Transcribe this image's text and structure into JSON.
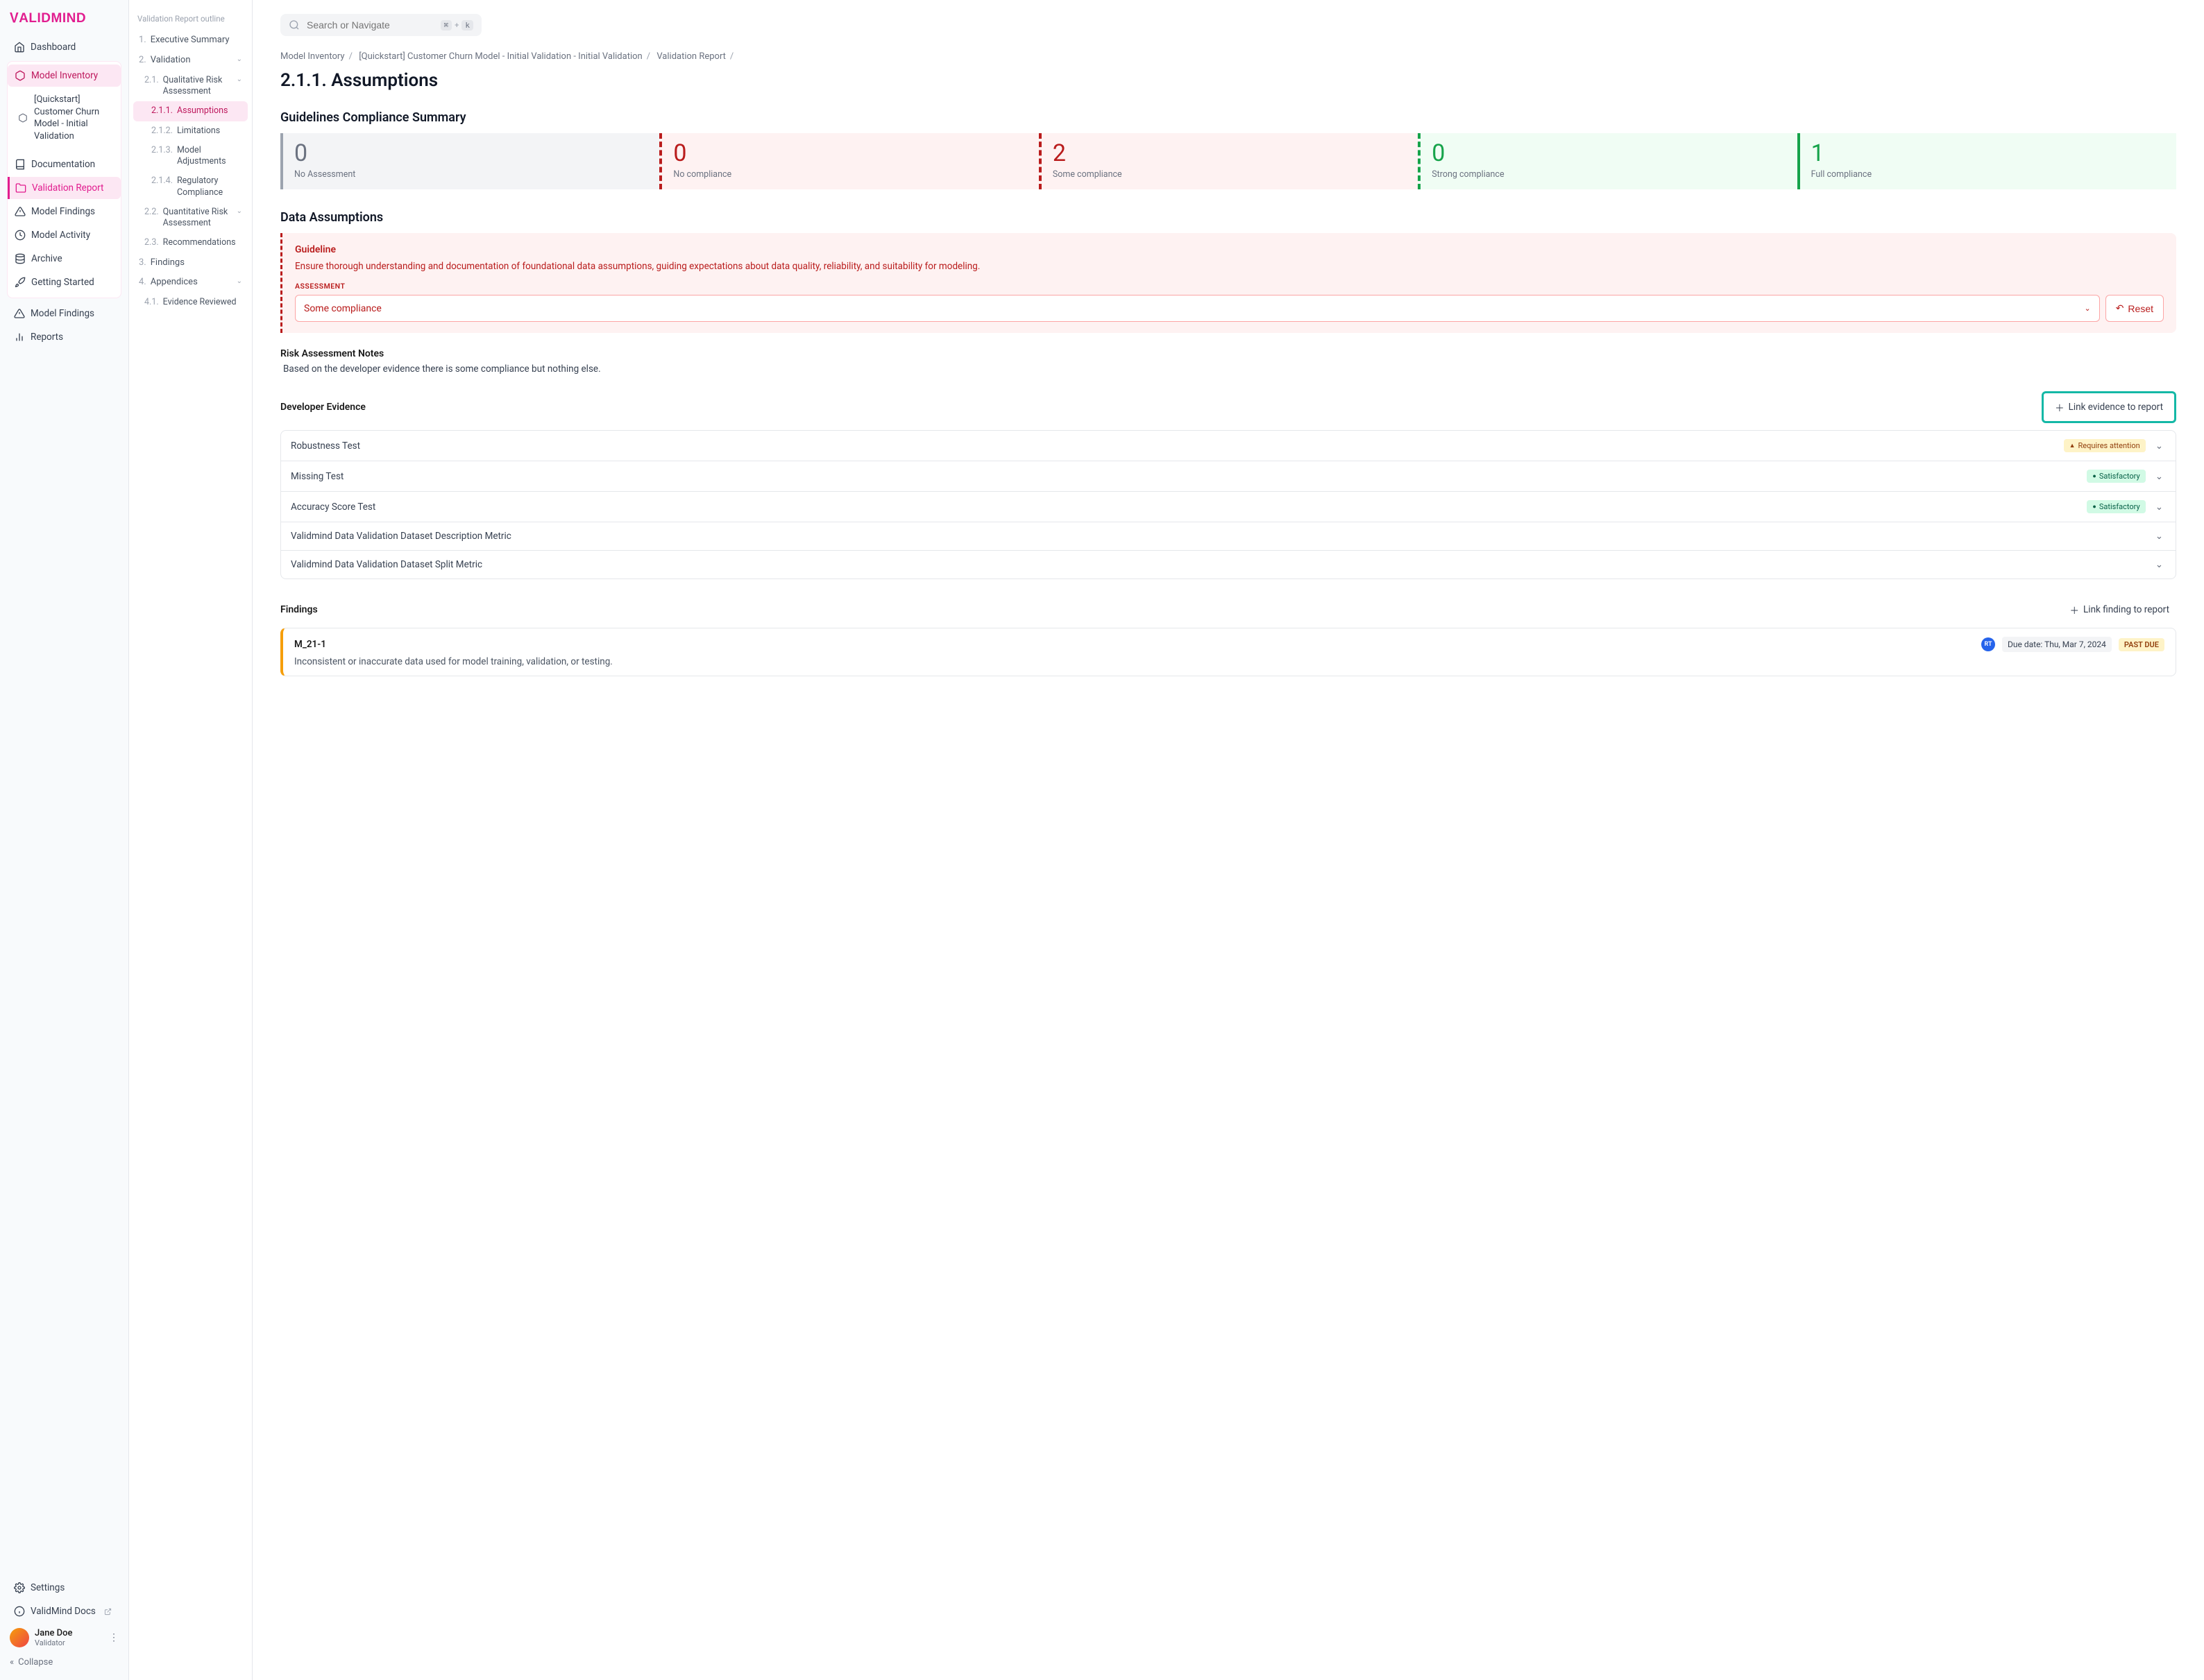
{
  "logo": "VALIDMIND",
  "search": {
    "placeholder": "Search or Navigate",
    "kbd1": "⌘",
    "kplus": "+",
    "kbd2": "k"
  },
  "sidenav": {
    "dashboard": "Dashboard",
    "inventory": "Model Inventory",
    "model": "[Quickstart] Customer Churn Model - Initial Validation",
    "documentation": "Documentation",
    "validation_report": "Validation Report",
    "findings": "Model Findings",
    "activity": "Model Activity",
    "archive": "Archive",
    "getting_started": "Getting Started",
    "findings2": "Model Findings",
    "reports": "Reports",
    "settings": "Settings",
    "docs": "ValidMind Docs",
    "collapse": "Collapse"
  },
  "user": {
    "name": "Jane Doe",
    "role": "Validator"
  },
  "outline": {
    "title": "Validation Report outline",
    "items": [
      {
        "num": "1.",
        "label": "Executive Summary",
        "lvl": 1
      },
      {
        "num": "2.",
        "label": "Validation",
        "lvl": 1,
        "chev": true
      },
      {
        "num": "2.1.",
        "label": "Qualitative Risk Assessment",
        "lvl": 2,
        "chev": true
      },
      {
        "num": "2.1.1.",
        "label": "Assumptions",
        "lvl": 3,
        "active": true
      },
      {
        "num": "2.1.2.",
        "label": "Limitations",
        "lvl": 3
      },
      {
        "num": "2.1.3.",
        "label": "Model Adjustments",
        "lvl": 3
      },
      {
        "num": "2.1.4.",
        "label": "Regulatory Compliance",
        "lvl": 3
      },
      {
        "num": "2.2.",
        "label": "Quantitative Risk Assessment",
        "lvl": 2,
        "chev": true
      },
      {
        "num": "2.3.",
        "label": "Recommendations",
        "lvl": 2
      },
      {
        "num": "3.",
        "label": "Findings",
        "lvl": 1
      },
      {
        "num": "4.",
        "label": "Appendices",
        "lvl": 1,
        "chev": true
      },
      {
        "num": "4.1.",
        "label": "Evidence Reviewed",
        "lvl": 2
      }
    ]
  },
  "crumbs": {
    "c1": "Model Inventory",
    "c2": "[Quickstart] Customer Churn Model - Initial Validation - Initial Validation",
    "c3": "Validation Report"
  },
  "page_title": "2.1.1. Assumptions",
  "gcs": {
    "heading": "Guidelines Compliance Summary",
    "cards": [
      {
        "n": "0",
        "label": "No Assessment",
        "cls": "none"
      },
      {
        "n": "0",
        "label": "No compliance",
        "cls": "no"
      },
      {
        "n": "2",
        "label": "Some compliance",
        "cls": "some"
      },
      {
        "n": "0",
        "label": "Strong compliance",
        "cls": "strong"
      },
      {
        "n": "1",
        "label": "Full compliance",
        "cls": "full"
      }
    ]
  },
  "data_assumptions": {
    "heading": "Data Assumptions",
    "guideline_label": "Guideline",
    "guideline_text": "Ensure thorough understanding and documentation of foundational data assumptions, guiding expectations about data quality, reliability, and suitability for modeling.",
    "assessment_label": "ASSESSMENT",
    "assessment_value": "Some compliance",
    "reset": "Reset"
  },
  "notes": {
    "heading": "Risk Assessment Notes",
    "text": "Based on the developer evidence there is some compliance but nothing else."
  },
  "evidence": {
    "heading": "Developer Evidence",
    "link_label": "Link evidence to report",
    "rows": [
      {
        "name": "Robustness Test",
        "badge": "Requires attention",
        "btype": "attention"
      },
      {
        "name": "Missing Test",
        "badge": "Satisfactory",
        "btype": "satisfactory"
      },
      {
        "name": "Accuracy Score Test",
        "badge": "Satisfactory",
        "btype": "satisfactory"
      },
      {
        "name": "Validmind Data Validation Dataset Description Metric"
      },
      {
        "name": "Validmind Data Validation Dataset Split Metric"
      }
    ]
  },
  "findings": {
    "heading": "Findings",
    "link_label": "Link finding to report",
    "card": {
      "id": "M_21-1",
      "rt": "RT",
      "due": "Due date: Thu, Mar 7, 2024",
      "status": "PAST DUE",
      "desc": "Inconsistent or inaccurate data used for model training, validation, or testing."
    }
  }
}
